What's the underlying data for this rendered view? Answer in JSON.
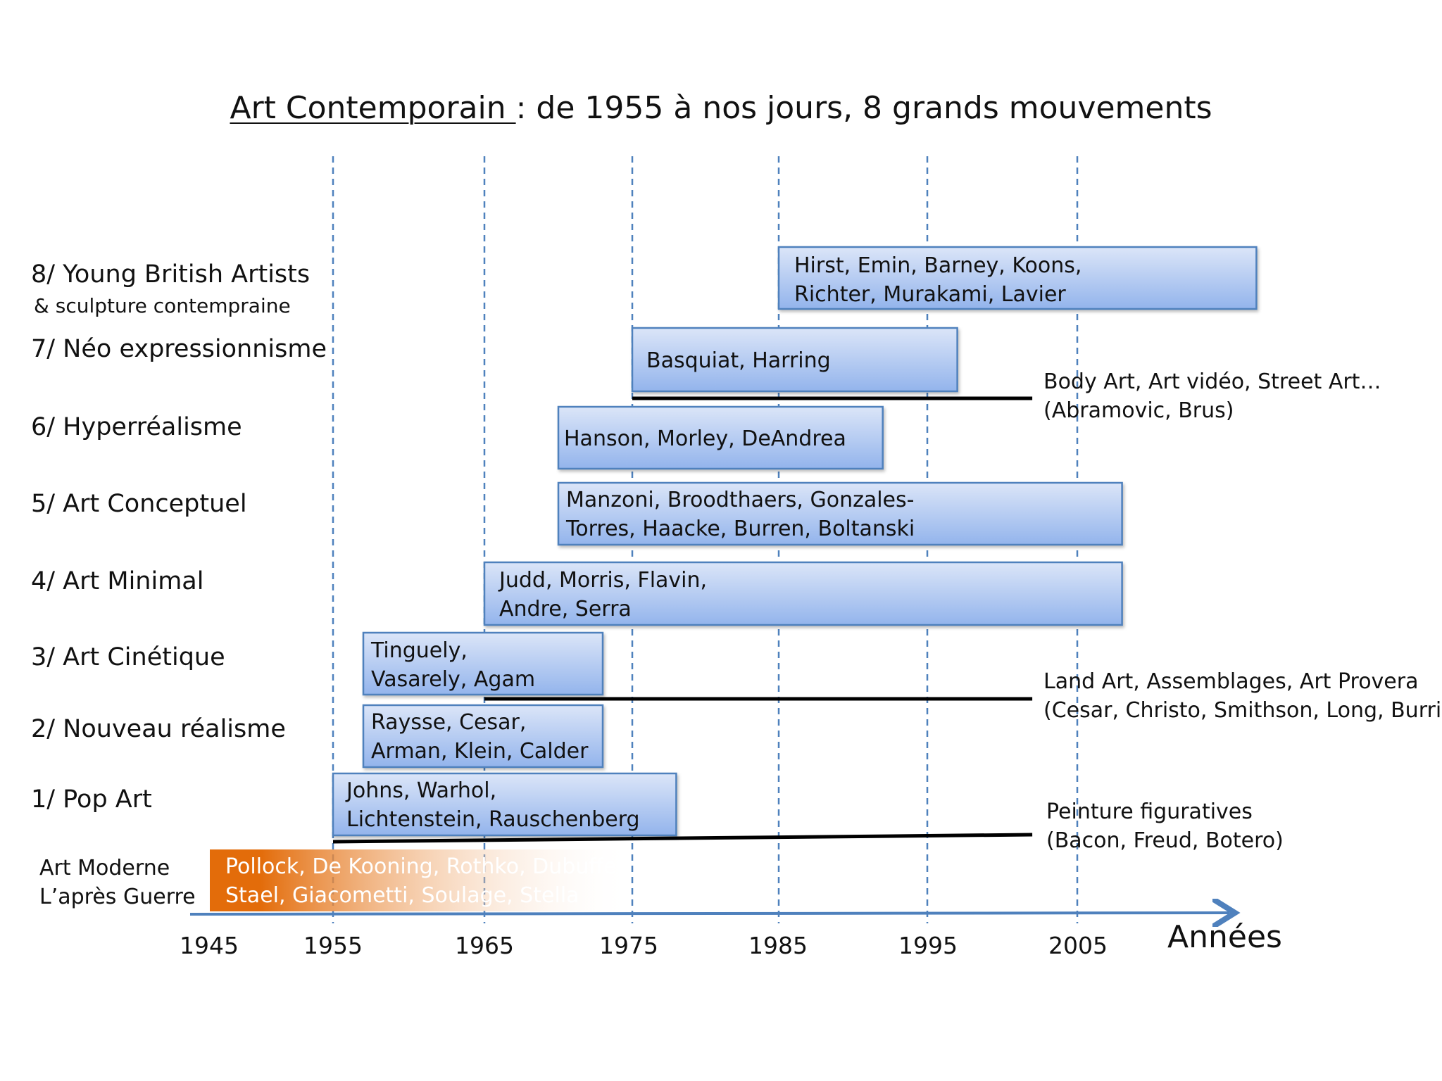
{
  "title": {
    "main": "Art Contemporain ",
    "rest": ": de 1955 à nos jours, 8 grands mouvements"
  },
  "axis": {
    "years": [
      "1945",
      "1955",
      "1965",
      "1975",
      "1985",
      "1995",
      "2005"
    ],
    "label": "Années",
    "color": "#4f81bd"
  },
  "movements": [
    {
      "label": "8/ Young British Artists",
      "sublabel": "& sculpture contempraine",
      "artists_line1": "Hirst, Emin, Barney, Koons,",
      "artists_line2": "Richter, Murakami, Lavier",
      "start": 1985,
      "end": 2017
    },
    {
      "label": "7/ Néo expressionnisme",
      "artists_line1": "Basquiat, Harring",
      "artists_line2": "",
      "start": 1975,
      "end": 1997
    },
    {
      "label": "6/ Hyperréalisme",
      "artists_line1": "Hanson, Morley, DeAndrea",
      "artists_line2": "",
      "start": 1970,
      "end": 1992
    },
    {
      "label": "5/ Art Conceptuel",
      "artists_line1": "Manzoni, Broodthaers, Gonzales-",
      "artists_line2": "Torres, Haacke, Burren, Boltanski",
      "start": 1970,
      "end": 2008
    },
    {
      "label": "4/ Art Minimal",
      "artists_line1": "Judd, Morris, Flavin,",
      "artists_line2": "Andre, Serra",
      "start": 1965,
      "end": 2008
    },
    {
      "label": "3/ Art Cinétique",
      "artists_line1": "Tinguely,",
      "artists_line2": "Vasarely, Agam",
      "start": 1957,
      "end": 1973
    },
    {
      "label": "2/ Nouveau réalisme",
      "artists_line1": "Raysse, Cesar,",
      "artists_line2": "Arman, Klein, Calder",
      "start": 1957,
      "end": 1973
    },
    {
      "label": "1/ Pop Art",
      "artists_line1": "Johns, Warhol,",
      "artists_line2": "Lichtenstein, Rauschenberg",
      "start": 1955,
      "end": 1978
    }
  ],
  "art_moderne": {
    "label_line1": "Art Moderne",
    "label_line2": "L’après Guerre",
    "artists_line1": "Pollock, De Kooning, Rothko, Dubuffet,",
    "artists_line2": "Stael, Giacometti, Soulage, Stella",
    "color": "#e36c0a"
  },
  "side_notes": [
    {
      "line1": "Body Art, Art vidéo, Street Art…",
      "line2": "(Abramovic, Brus)",
      "start": 1975,
      "end": 2002
    },
    {
      "line1": "Land Art, Assemblages, Art Provera",
      "line2": "(Cesar, Christo, Smithson, Long, Burri)",
      "start": 1965,
      "end": 2002
    },
    {
      "line1": "Peinture figuratives",
      "line2": "(Bacon, Freud, Botero)",
      "start": 1955,
      "end": 2002
    }
  ],
  "colors": {
    "bar_top": "#dbe5f8",
    "bar_bottom": "#93b4ec",
    "bar_border": "#4f81bd"
  }
}
